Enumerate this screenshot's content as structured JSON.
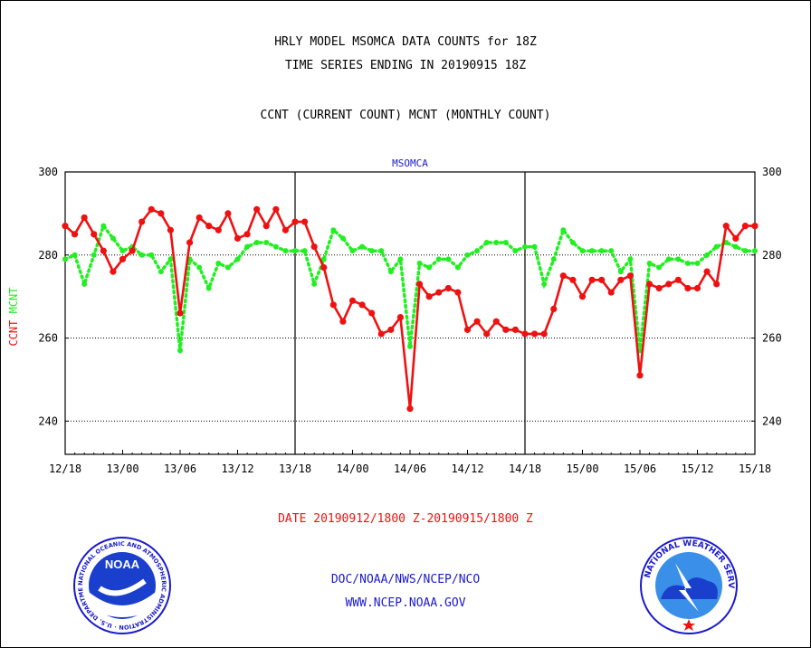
{
  "header": {
    "title_line1": "HRLY MODEL MSOMCA DATA COUNTS for 18Z",
    "title_line2": "TIME SERIES ENDING IN 20190915 18Z",
    "subtitle": "CCNT (CURRENT COUNT) MCNT (MONTHLY COUNT)"
  },
  "footer": {
    "date_range": "DATE 20190912/1800 Z-20190915/1800 Z",
    "org_line": "DOC/NOAA/NWS/NCEP/NCO",
    "url_line": "WWW.NCEP.NOAA.GOV"
  },
  "logos": {
    "left_logo_text": "NOAA",
    "left_logo_ring": "NATIONAL OCEANIC AND ATMOSPHERIC ADMINISTRATION · U.S. DEPARTMENT OF COMMERCE",
    "right_logo_ring": "NATIONAL WEATHER SERVICE"
  },
  "colors": {
    "ccnt": "#ee1111",
    "mcnt": "#22ee22",
    "text_blue": "#1a1acc",
    "axis": "#000000"
  },
  "chart_data": {
    "type": "line",
    "title": "MSOMCA",
    "ylabel_left_parts": [
      "CCNT",
      "MCNT"
    ],
    "ylim": [
      232,
      300
    ],
    "yticks": [
      240,
      260,
      280,
      300
    ],
    "x_tick_labels": [
      "12/18",
      "13/00",
      "13/06",
      "13/12",
      "13/18",
      "14/00",
      "14/06",
      "14/12",
      "14/18",
      "15/00",
      "15/06",
      "15/12",
      "15/18"
    ],
    "x_hours": [
      0,
      72
    ],
    "day_dividers": [
      24,
      48
    ],
    "grid": "dotted horizontal at 240, 260, 280",
    "series": [
      {
        "name": "CCNT",
        "color": "#ee1111",
        "style": "solid",
        "x": [
          0,
          1,
          2,
          3,
          4,
          5,
          6,
          7,
          8,
          9,
          10,
          11,
          12,
          13,
          14,
          15,
          16,
          17,
          18,
          19,
          20,
          21,
          22,
          23,
          24,
          25,
          26,
          27,
          28,
          29,
          30,
          31,
          32,
          33,
          34,
          35,
          36,
          37,
          38,
          39,
          40,
          41,
          42,
          43,
          44,
          45,
          46,
          47,
          48,
          49,
          50,
          51,
          52,
          53,
          54,
          55,
          56,
          57,
          58,
          59,
          60,
          61,
          62,
          63,
          64,
          65,
          66,
          67,
          68,
          69,
          70,
          71,
          72
        ],
        "values": [
          287,
          285,
          289,
          285,
          281,
          276,
          279,
          281,
          288,
          291,
          290,
          286,
          266,
          283,
          289,
          287,
          286,
          290,
          284,
          285,
          291,
          287,
          291,
          286,
          288,
          288,
          282,
          277,
          268,
          264,
          269,
          268,
          266,
          261,
          262,
          265,
          243,
          273,
          270,
          271,
          272,
          271,
          262,
          264,
          261,
          264,
          262,
          262,
          261,
          261,
          261,
          267,
          275,
          274,
          270,
          274,
          274,
          271,
          274,
          275,
          251,
          273,
          272,
          273,
          274,
          272,
          272,
          276,
          273,
          287,
          284,
          287,
          287
        ]
      },
      {
        "name": "MCNT",
        "color": "#22ee22",
        "style": "dotted",
        "x": [
          0,
          1,
          2,
          3,
          4,
          5,
          6,
          7,
          8,
          9,
          10,
          11,
          12,
          13,
          14,
          15,
          16,
          17,
          18,
          19,
          20,
          21,
          22,
          23,
          24,
          25,
          26,
          27,
          28,
          29,
          30,
          31,
          32,
          33,
          34,
          35,
          36,
          37,
          38,
          39,
          40,
          41,
          42,
          43,
          44,
          45,
          46,
          47,
          48,
          49,
          50,
          51,
          52,
          53,
          54,
          55,
          56,
          57,
          58,
          59,
          60,
          61,
          62,
          63,
          64,
          65,
          66,
          67,
          68,
          69,
          70,
          71,
          72
        ],
        "values": [
          279,
          280,
          273,
          280,
          287,
          284,
          281,
          282,
          280,
          280,
          276,
          279,
          257,
          279,
          277,
          272,
          278,
          277,
          279,
          282,
          283,
          283,
          282,
          281,
          281,
          281,
          273,
          279,
          286,
          284,
          281,
          282,
          281,
          281,
          276,
          279,
          258,
          278,
          277,
          279,
          279,
          277,
          280,
          281,
          283,
          283,
          283,
          281,
          282,
          282,
          273,
          279,
          286,
          283,
          281,
          281,
          281,
          281,
          276,
          279,
          257,
          278,
          277,
          279,
          279,
          278,
          278,
          280,
          282,
          283,
          282,
          281,
          281
        ]
      }
    ]
  }
}
